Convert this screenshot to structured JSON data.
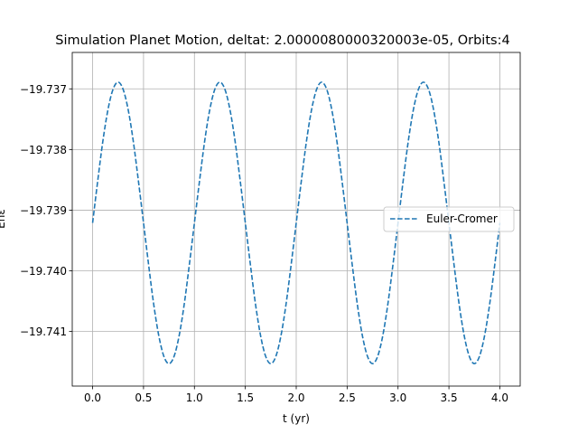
{
  "chart_data": {
    "type": "line",
    "title": "Simulation Planet Motion, deltat: 2.0000080000320003e-05, Orbits:4",
    "xlabel": "t (yr)",
    "ylabel": "Enε",
    "xlim": [
      -0.2,
      4.2
    ],
    "ylim": [
      -19.7419,
      -19.7364
    ],
    "xticks": [
      0.0,
      0.5,
      1.0,
      1.5,
      2.0,
      2.5,
      3.0,
      3.5,
      4.0
    ],
    "xtick_labels": [
      "0.0",
      "0.5",
      "1.0",
      "1.5",
      "2.0",
      "2.5",
      "3.0",
      "3.5",
      "4.0"
    ],
    "yticks": [
      -19.741,
      -19.74,
      -19.739,
      -19.738,
      -19.737
    ],
    "ytick_labels": [
      "−19.741",
      "−19.740",
      "−19.739",
      "−19.738",
      "−19.737"
    ],
    "grid": true,
    "legend_position": "center-right",
    "series": [
      {
        "name": "Euler-Cromer",
        "style": "dashed",
        "color": "#1f77b4",
        "x": [
          0.0,
          0.05,
          0.1,
          0.15,
          0.2,
          0.25,
          0.3,
          0.35,
          0.4,
          0.45,
          0.5,
          0.55,
          0.6,
          0.65,
          0.7,
          0.75,
          0.8,
          0.85,
          0.9,
          0.95,
          1.0,
          1.05,
          1.1,
          1.15,
          1.2,
          1.25,
          1.3,
          1.35,
          1.4,
          1.45,
          1.5,
          1.55,
          1.6,
          1.65,
          1.7,
          1.75,
          1.8,
          1.85,
          1.9,
          1.95,
          2.0,
          2.05,
          2.1,
          2.15,
          2.2,
          2.25,
          2.3,
          2.35,
          2.4,
          2.45,
          2.5,
          2.55,
          2.6,
          2.65,
          2.7,
          2.75,
          2.8,
          2.85,
          2.9,
          2.95,
          3.0,
          3.05,
          3.1,
          3.15,
          3.2,
          3.25,
          3.3,
          3.35,
          3.4,
          3.45,
          3.5,
          3.55,
          3.6,
          3.65,
          3.7,
          3.75,
          3.8,
          3.85,
          3.9,
          3.95,
          4.0
        ],
        "y": [
          -19.73921,
          -19.73852,
          -19.73787,
          -19.73735,
          -19.73701,
          -19.73689,
          -19.73701,
          -19.73735,
          -19.73787,
          -19.73852,
          -19.73921,
          -19.7399,
          -19.74055,
          -19.74107,
          -19.74141,
          -19.74153,
          -19.74141,
          -19.74107,
          -19.74055,
          -19.7399,
          -19.73921,
          -19.73852,
          -19.73787,
          -19.73735,
          -19.73701,
          -19.73689,
          -19.73701,
          -19.73735,
          -19.73787,
          -19.73852,
          -19.73921,
          -19.7399,
          -19.74055,
          -19.74107,
          -19.74141,
          -19.74153,
          -19.74141,
          -19.74107,
          -19.74055,
          -19.7399,
          -19.73921,
          -19.73852,
          -19.73787,
          -19.73735,
          -19.73701,
          -19.73689,
          -19.73701,
          -19.73735,
          -19.73787,
          -19.73852,
          -19.73921,
          -19.7399,
          -19.74055,
          -19.74107,
          -19.74141,
          -19.74153,
          -19.74141,
          -19.74107,
          -19.74055,
          -19.7399,
          -19.73921,
          -19.73852,
          -19.73787,
          -19.73735,
          -19.73701,
          -19.73689,
          -19.73701,
          -19.73735,
          -19.73787,
          -19.73852,
          -19.73921,
          -19.7399,
          -19.74055,
          -19.74107,
          -19.74141,
          -19.74153,
          -19.74141,
          -19.74107,
          -19.74055,
          -19.7399,
          -19.73921
        ]
      }
    ]
  }
}
